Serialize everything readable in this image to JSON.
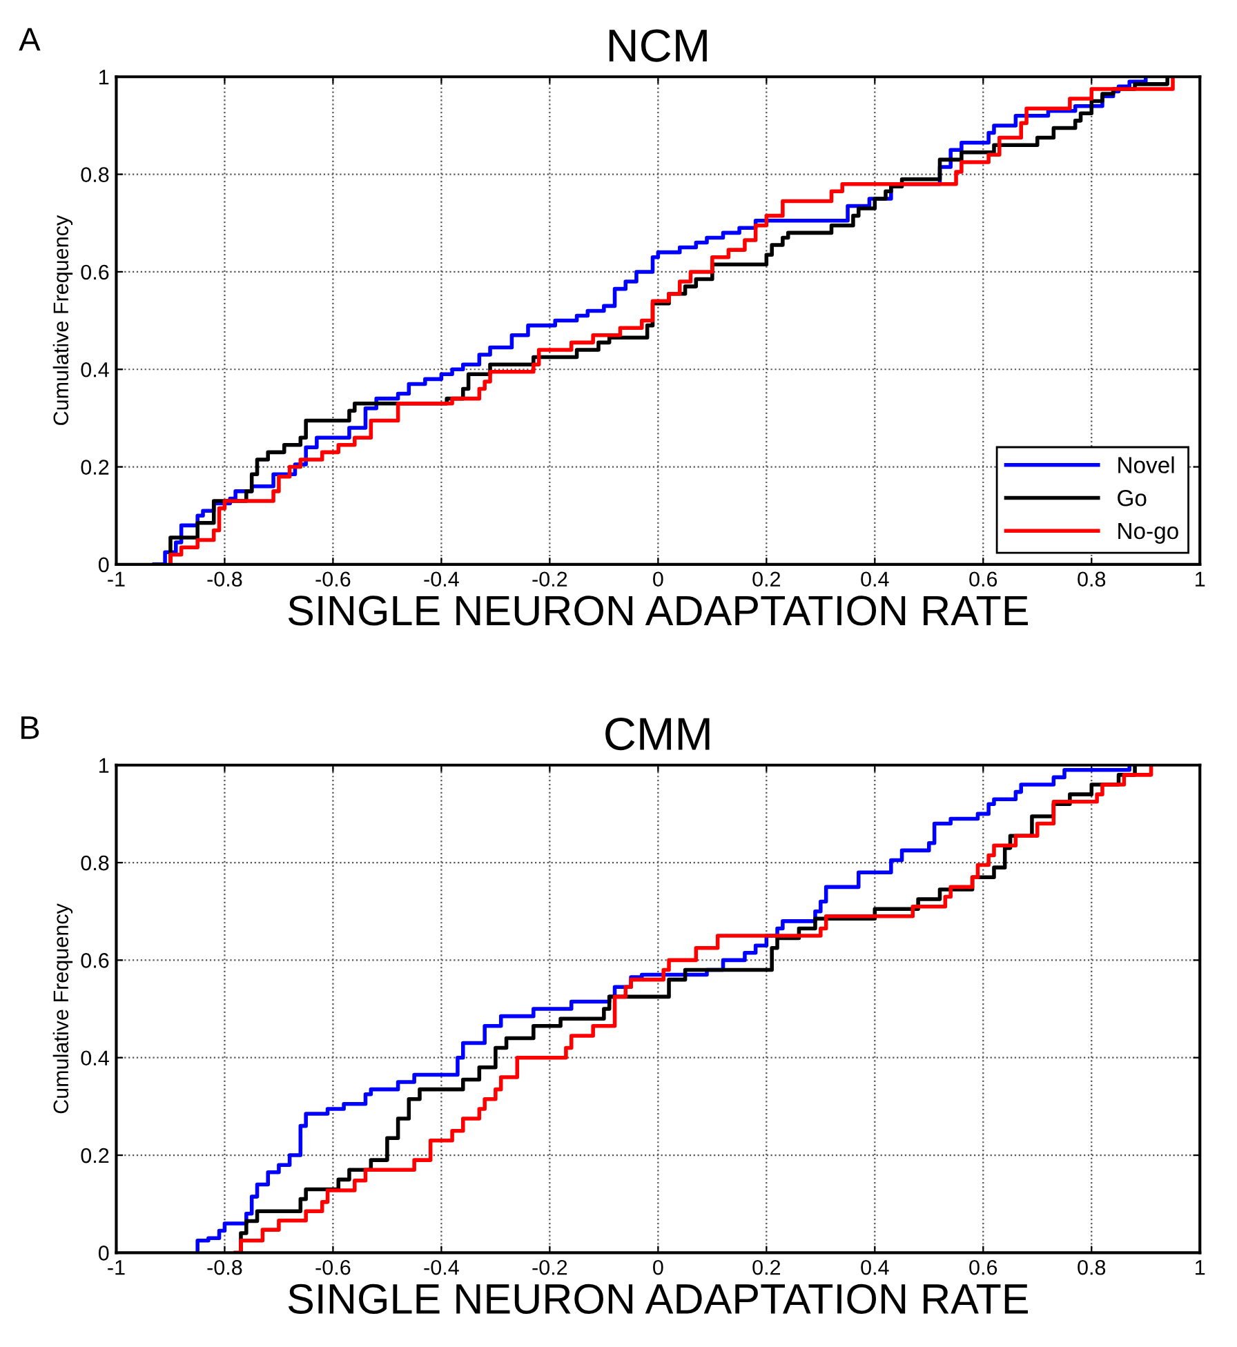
{
  "chart_data": [
    {
      "type": "step",
      "title": "NCM",
      "xlabel": "SINGLE NEURON ADAPTATION RATE",
      "ylabel": "Cumulative Frequency",
      "annotations": [
        "A"
      ],
      "xlim": [
        -1,
        1
      ],
      "xticks": [
        -1,
        -0.8,
        -0.6,
        -0.4,
        -0.2,
        0,
        0.2,
        0.4,
        0.6,
        0.8,
        1
      ],
      "ylim": [
        0,
        1
      ],
      "yticks": [
        0,
        0.2,
        0.4,
        0.6,
        0.8,
        1
      ],
      "grid": true,
      "legend": "bottom right",
      "line_style": "solid",
      "marker": "none",
      "series": [
        {
          "name": "Novel",
          "color": "#0000ff",
          "x": [
            -0.93,
            -0.91,
            -0.89,
            -0.88,
            -0.85,
            -0.84,
            -0.82,
            -0.79,
            -0.78,
            -0.75,
            -0.71,
            -0.67,
            -0.65,
            -0.63,
            -0.57,
            -0.54,
            -0.52,
            -0.48,
            -0.46,
            -0.43,
            -0.4,
            -0.38,
            -0.36,
            -0.33,
            -0.31,
            -0.27,
            -0.24,
            -0.19,
            -0.15,
            -0.13,
            -0.1,
            -0.08,
            -0.06,
            -0.04,
            -0.01,
            0.0,
            0.04,
            0.07,
            0.09,
            0.12,
            0.15,
            0.18,
            0.35,
            0.39,
            0.43,
            0.52,
            0.52,
            0.54,
            0.56,
            0.61,
            0.62,
            0.66,
            0.72,
            0.77,
            0.82,
            0.84,
            0.85,
            0.87,
            0.9
          ],
          "values": [
            0,
            0.025,
            0.045,
            0.08,
            0.1,
            0.11,
            0.125,
            0.135,
            0.15,
            0.16,
            0.185,
            0.205,
            0.24,
            0.26,
            0.28,
            0.32,
            0.34,
            0.35,
            0.37,
            0.38,
            0.39,
            0.4,
            0.41,
            0.43,
            0.445,
            0.47,
            0.49,
            0.5,
            0.51,
            0.52,
            0.53,
            0.565,
            0.58,
            0.6,
            0.63,
            0.64,
            0.65,
            0.66,
            0.67,
            0.68,
            0.69,
            0.705,
            0.735,
            0.75,
            0.78,
            0.79,
            0.815,
            0.85,
            0.865,
            0.885,
            0.9,
            0.92,
            0.93,
            0.94,
            0.96,
            0.97,
            0.98,
            0.99,
            1.0
          ]
        },
        {
          "name": "Go",
          "color": "#000000",
          "x": [
            -0.9,
            -0.9,
            -0.9,
            -0.85,
            -0.82,
            -0.82,
            -0.76,
            -0.75,
            -0.74,
            -0.72,
            -0.69,
            -0.66,
            -0.65,
            -0.57,
            -0.56,
            -0.39,
            -0.36,
            -0.35,
            -0.31,
            -0.23,
            -0.15,
            -0.11,
            -0.09,
            -0.02,
            -0.01,
            0.02,
            0.05,
            0.07,
            0.1,
            0.2,
            0.21,
            0.23,
            0.24,
            0.32,
            0.36,
            0.37,
            0.4,
            0.42,
            0.43,
            0.45,
            0.52,
            0.52,
            0.56,
            0.62,
            0.7,
            0.73,
            0.77,
            0.78,
            0.8,
            0.82,
            0.84,
            0.88,
            0.94
          ],
          "values": [
            0,
            0.035,
            0.055,
            0.085,
            0.115,
            0.13,
            0.15,
            0.185,
            0.215,
            0.23,
            0.245,
            0.26,
            0.295,
            0.315,
            0.33,
            0.34,
            0.36,
            0.39,
            0.41,
            0.425,
            0.44,
            0.455,
            0.465,
            0.49,
            0.535,
            0.555,
            0.57,
            0.585,
            0.615,
            0.635,
            0.655,
            0.67,
            0.68,
            0.695,
            0.715,
            0.73,
            0.75,
            0.765,
            0.775,
            0.79,
            0.81,
            0.83,
            0.845,
            0.86,
            0.875,
            0.895,
            0.91,
            0.925,
            0.95,
            0.965,
            0.975,
            0.985,
            1.0
          ]
        },
        {
          "name": "No-go",
          "color": "#ff0000",
          "x": [
            -0.9,
            -0.9,
            -0.88,
            -0.85,
            -0.82,
            -0.81,
            -0.8,
            -0.71,
            -0.7,
            -0.68,
            -0.66,
            -0.62,
            -0.59,
            -0.56,
            -0.53,
            -0.48,
            -0.38,
            -0.33,
            -0.32,
            -0.31,
            -0.23,
            -0.22,
            -0.16,
            -0.12,
            -0.07,
            -0.03,
            -0.01,
            0.02,
            0.04,
            0.06,
            0.1,
            0.13,
            0.16,
            0.18,
            0.2,
            0.23,
            0.23,
            0.32,
            0.34,
            0.55,
            0.56,
            0.61,
            0.63,
            0.67,
            0.68,
            0.76,
            0.8,
            0.95
          ],
          "values": [
            0,
            0.02,
            0.035,
            0.05,
            0.07,
            0.115,
            0.13,
            0.15,
            0.18,
            0.2,
            0.215,
            0.23,
            0.245,
            0.26,
            0.295,
            0.33,
            0.34,
            0.36,
            0.375,
            0.395,
            0.41,
            0.44,
            0.455,
            0.47,
            0.485,
            0.5,
            0.54,
            0.555,
            0.58,
            0.6,
            0.63,
            0.645,
            0.665,
            0.695,
            0.715,
            0.73,
            0.745,
            0.765,
            0.78,
            0.805,
            0.825,
            0.84,
            0.875,
            0.905,
            0.935,
            0.955,
            0.975,
            1.0
          ]
        }
      ]
    },
    {
      "type": "step",
      "title": "CMM",
      "xlabel": "SINGLE NEURON ADAPTATION RATE",
      "ylabel": "Cumulative Frequency",
      "annotations": [
        "B"
      ],
      "xlim": [
        -1,
        1
      ],
      "xticks": [
        -1,
        -0.8,
        -0.6,
        -0.4,
        -0.2,
        0,
        0.2,
        0.4,
        0.6,
        0.8,
        1
      ],
      "ylim": [
        0,
        1
      ],
      "yticks": [
        0,
        0.2,
        0.4,
        0.6,
        0.8,
        1
      ],
      "grid": true,
      "line_style": "solid",
      "marker": "none",
      "series": [
        {
          "color": "#0000ff",
          "x": [
            -0.85,
            -0.85,
            -0.83,
            -0.81,
            -0.8,
            -0.76,
            -0.75,
            -0.74,
            -0.72,
            -0.7,
            -0.68,
            -0.66,
            -0.65,
            -0.61,
            -0.58,
            -0.54,
            -0.53,
            -0.48,
            -0.45,
            -0.37,
            -0.36,
            -0.32,
            -0.29,
            -0.23,
            -0.16,
            -0.09,
            -0.08,
            -0.05,
            -0.03,
            0.09,
            0.12,
            0.16,
            0.18,
            0.2,
            0.22,
            0.23,
            0.29,
            0.3,
            0.31,
            0.37,
            0.43,
            0.45,
            0.5,
            0.51,
            0.54,
            0.59,
            0.61,
            0.62,
            0.66,
            0.67,
            0.73,
            0.75,
            0.87
          ],
          "values": [
            0,
            0.025,
            0.03,
            0.045,
            0.06,
            0.08,
            0.115,
            0.14,
            0.165,
            0.18,
            0.2,
            0.26,
            0.285,
            0.295,
            0.305,
            0.325,
            0.335,
            0.35,
            0.365,
            0.4,
            0.43,
            0.465,
            0.485,
            0.5,
            0.515,
            0.525,
            0.545,
            0.565,
            0.57,
            0.58,
            0.6,
            0.615,
            0.63,
            0.65,
            0.665,
            0.68,
            0.7,
            0.72,
            0.75,
            0.78,
            0.805,
            0.825,
            0.84,
            0.88,
            0.89,
            0.9,
            0.92,
            0.93,
            0.945,
            0.96,
            0.975,
            0.99,
            1.0
          ]
        },
        {
          "color": "#000000",
          "x": [
            -0.77,
            -0.77,
            -0.76,
            -0.74,
            -0.66,
            -0.65,
            -0.59,
            -0.57,
            -0.53,
            -0.5,
            -0.48,
            -0.46,
            -0.44,
            -0.36,
            -0.33,
            -0.3,
            -0.28,
            -0.23,
            -0.18,
            -0.1,
            -0.09,
            0.02,
            0.05,
            0.21,
            0.22,
            0.26,
            0.29,
            0.4,
            0.48,
            0.52,
            0.58,
            0.62,
            0.64,
            0.65,
            0.69,
            0.73,
            0.76,
            0.8,
            0.85,
            0.88
          ],
          "values": [
            0,
            0.04,
            0.065,
            0.085,
            0.11,
            0.13,
            0.15,
            0.17,
            0.19,
            0.235,
            0.275,
            0.315,
            0.335,
            0.355,
            0.38,
            0.42,
            0.44,
            0.465,
            0.48,
            0.5,
            0.525,
            0.56,
            0.58,
            0.625,
            0.645,
            0.665,
            0.685,
            0.705,
            0.725,
            0.745,
            0.77,
            0.79,
            0.83,
            0.855,
            0.895,
            0.92,
            0.94,
            0.96,
            0.98,
            1.0
          ]
        },
        {
          "color": "#ff0000",
          "x": [
            -0.78,
            -0.77,
            -0.73,
            -0.7,
            -0.65,
            -0.62,
            -0.61,
            -0.56,
            -0.54,
            -0.45,
            -0.42,
            -0.38,
            -0.36,
            -0.33,
            -0.32,
            -0.3,
            -0.29,
            -0.26,
            -0.17,
            -0.16,
            -0.12,
            -0.08,
            -0.06,
            -0.05,
            0.01,
            0.02,
            0.07,
            0.11,
            0.3,
            0.31,
            0.47,
            0.53,
            0.54,
            0.58,
            0.59,
            0.61,
            0.62,
            0.66,
            0.7,
            0.73,
            0.81,
            0.82,
            0.86,
            0.91
          ],
          "values": [
            0,
            0.025,
            0.047,
            0.066,
            0.085,
            0.104,
            0.128,
            0.148,
            0.17,
            0.19,
            0.23,
            0.25,
            0.275,
            0.295,
            0.315,
            0.335,
            0.36,
            0.4,
            0.42,
            0.445,
            0.465,
            0.525,
            0.545,
            0.56,
            0.58,
            0.6,
            0.625,
            0.65,
            0.665,
            0.69,
            0.71,
            0.73,
            0.75,
            0.77,
            0.795,
            0.815,
            0.835,
            0.855,
            0.88,
            0.925,
            0.94,
            0.96,
            0.98,
            1.0
          ]
        }
      ]
    }
  ]
}
